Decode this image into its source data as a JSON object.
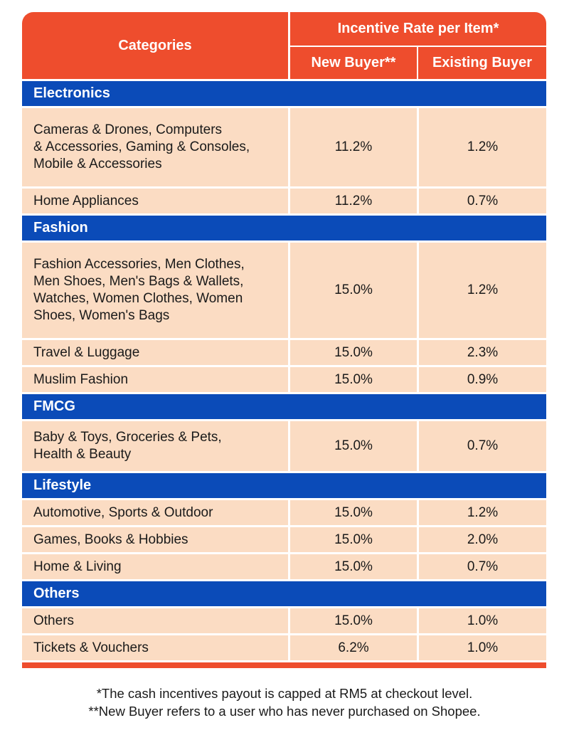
{
  "header": {
    "categories": "Categories",
    "incentive_rate": "Incentive Rate per Item*",
    "new_buyer": "New Buyer**",
    "existing_buyer": "Existing Buyer"
  },
  "groups": [
    {
      "name": "Electronics",
      "rows": [
        {
          "category": "Cameras & Drones, Computers\n& Accessories, Gaming & Consoles,\nMobile & Accessories",
          "new": "11.2%",
          "existing": "1.2%"
        },
        {
          "category": "Home Appliances",
          "new": "11.2%",
          "existing": "0.7%"
        }
      ]
    },
    {
      "name": "Fashion",
      "rows": [
        {
          "category": "Fashion Accessories, Men Clothes,\nMen Shoes, Men's Bags & Wallets,\nWatches, Women Clothes, Women\nShoes, Women's Bags",
          "new": "15.0%",
          "existing": "1.2%"
        },
        {
          "category": "Travel & Luggage",
          "new": "15.0%",
          "existing": "2.3%"
        },
        {
          "category": "Muslim Fashion",
          "new": "15.0%",
          "existing": "0.9%"
        }
      ]
    },
    {
      "name": "FMCG",
      "rows": [
        {
          "category": "Baby & Toys, Groceries & Pets,\nHealth & Beauty",
          "new": "15.0%",
          "existing": "0.7%"
        }
      ]
    },
    {
      "name": "Lifestyle",
      "rows": [
        {
          "category": "Automotive, Sports & Outdoor",
          "new": "15.0%",
          "existing": "1.2%"
        },
        {
          "category": "Games, Books & Hobbies",
          "new": "15.0%",
          "existing": "2.0%"
        },
        {
          "category": "Home & Living",
          "new": "15.0%",
          "existing": "0.7%"
        }
      ]
    },
    {
      "name": "Others",
      "rows": [
        {
          "category": "Others",
          "new": "15.0%",
          "existing": "1.0%"
        },
        {
          "category": "Tickets & Vouchers",
          "new": "6.2%",
          "existing": "1.0%"
        }
      ]
    }
  ],
  "notes": {
    "line1": "*The cash incentives payout is capped at RM5 at checkout level.",
    "line2": "**New Buyer refers to a user who has never purchased on Shopee."
  },
  "colors": {
    "header_orange": "#ee4d2d",
    "group_blue": "#0b4bb8",
    "cell_peach": "#fbdcc3"
  }
}
